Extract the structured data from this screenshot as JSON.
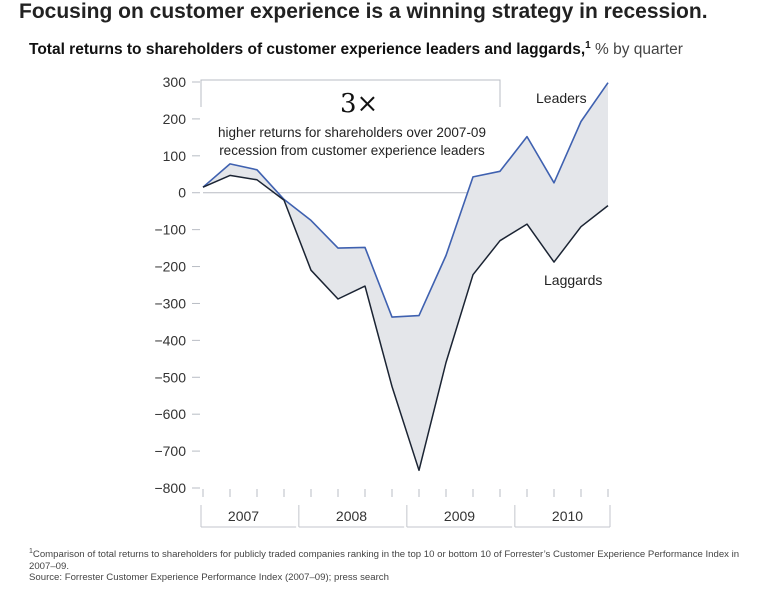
{
  "headline": "Focusing on customer experience is a winning strategy in recession.",
  "chart_data": {
    "type": "area",
    "title": "Total returns to shareholders of customer experience leaders and laggards,",
    "title_footnote_mark": "1",
    "unit": "% by quarter",
    "ylim": [
      -800,
      300
    ],
    "yticks": [
      300,
      200,
      100,
      0,
      -100,
      -200,
      -300,
      -400,
      -500,
      -600,
      -700,
      -800
    ],
    "ytick_labels": [
      "300",
      "200",
      "100",
      "0",
      "−100",
      "−200",
      "−300",
      "−400",
      "−500",
      "−600",
      "−700",
      "−800"
    ],
    "years": [
      "2007",
      "2008",
      "2009",
      "2010"
    ],
    "quarters": 16,
    "series": [
      {
        "name": "Leaders",
        "color": "#3f61b0",
        "values": [
          15,
          78,
          62,
          -18,
          -75,
          -150,
          -148,
          -337,
          -333,
          -170,
          43,
          58,
          152,
          27,
          193,
          298
        ]
      },
      {
        "name": "Laggards",
        "color": "#1b2433",
        "values": [
          15,
          47,
          35,
          -20,
          -210,
          -288,
          -253,
          -525,
          -752,
          -460,
          -222,
          -130,
          -85,
          -188,
          -92,
          -35
        ]
      }
    ],
    "fill_color": "#e4e6ea",
    "annotation": {
      "big": "3×",
      "line1": "higher returns for shareholders over 2007-09",
      "line2": "recession from customer experience leaders"
    }
  },
  "footnote": {
    "mark": "1",
    "text": "Comparison of total returns to shareholders for publicly traded companies ranking in the top 10 or bottom 10 of Forrester’s Customer Experience Performance Index in 2007–09."
  },
  "source": "Source: Forrester Customer Experience Performance Index (2007–09); press search"
}
